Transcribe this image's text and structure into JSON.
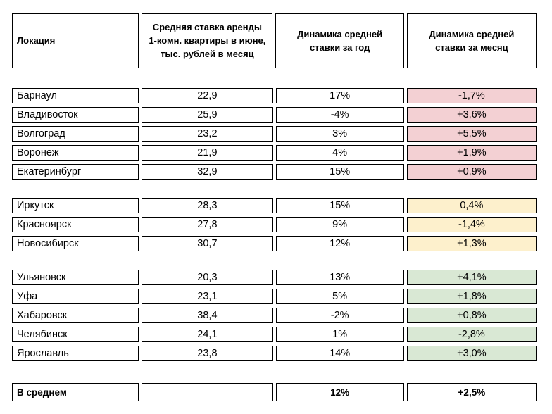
{
  "chart_data": {
    "type": "table",
    "columns": [
      "Локация",
      "Средняя ставка аренды 1-комн. квартиры в июне, тыс. рублей в месяц",
      "Динамика средней ставки за год",
      "Динамика средней ставки за месяц"
    ],
    "groups": [
      {
        "month_bg": "#f3d0d3",
        "rows": [
          {
            "location": "Барнаул",
            "rate": "22,9",
            "year_change": "17%",
            "month_change": "-1,7%"
          },
          {
            "location": "Владивосток",
            "rate": "25,9",
            "year_change": "-4%",
            "month_change": "+3,6%"
          },
          {
            "location": "Волгоград",
            "rate": "23,2",
            "year_change": "3%",
            "month_change": "+5,5%"
          },
          {
            "location": "Воронеж",
            "rate": "21,9",
            "year_change": "4%",
            "month_change": "+1,9%"
          },
          {
            "location": "Екатеринбург",
            "rate": "32,9",
            "year_change": "15%",
            "month_change": "+0,9%"
          }
        ]
      },
      {
        "month_bg": "#fdf0cc",
        "rows": [
          {
            "location": "Иркутск",
            "rate": "28,3",
            "year_change": "15%",
            "month_change": "0,4%"
          },
          {
            "location": "Красноярск",
            "rate": "27,8",
            "year_change": "9%",
            "month_change": "-1,4%"
          },
          {
            "location": "Новосибирск",
            "rate": "30,7",
            "year_change": "12%",
            "month_change": "+1,3%"
          }
        ]
      },
      {
        "month_bg": "#d9e8d4",
        "rows": [
          {
            "location": "Ульяновск",
            "rate": "20,3",
            "year_change": "13%",
            "month_change": "+4,1%"
          },
          {
            "location": "Уфа",
            "rate": "23,1",
            "year_change": "5%",
            "month_change": "+1,8%"
          },
          {
            "location": "Хабаровск",
            "rate": "38,4",
            "year_change": "-2%",
            "month_change": "+0,8%"
          },
          {
            "location": "Челябинск",
            "rate": "24,1",
            "year_change": "1%",
            "month_change": "-2,8%"
          },
          {
            "location": "Ярославль",
            "rate": "23,8",
            "year_change": "14%",
            "month_change": "+3,0%"
          }
        ]
      }
    ],
    "footer": {
      "label": "В среднем",
      "rate": "",
      "year_change": "12%",
      "month_change": "+2,5%"
    },
    "colors": {
      "group1_month_bg": "#f3d0d3",
      "group2_month_bg": "#fdf0cc",
      "group3_month_bg": "#d9e8d4",
      "border": "#000000",
      "text": "#000000"
    },
    "layout_hints": {
      "grid": "separate-bordered-cells",
      "column_alignment": [
        "left",
        "center",
        "center",
        "center"
      ]
    }
  }
}
